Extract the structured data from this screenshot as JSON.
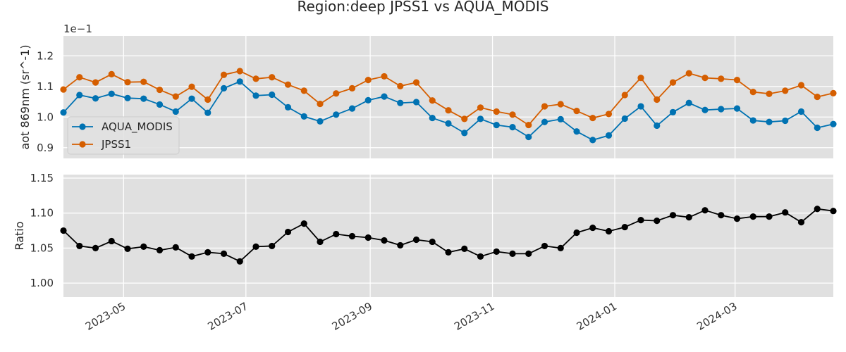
{
  "chart_data": {
    "type": "line",
    "title": "Region:deep JPSS1 vs AQUA_MODIS",
    "x": [
      "2023-04-01",
      "2023-04-09",
      "2023-04-17",
      "2023-04-25",
      "2023-05-03",
      "2023-05-11",
      "2023-05-19",
      "2023-05-27",
      "2023-06-04",
      "2023-06-12",
      "2023-06-20",
      "2023-06-28",
      "2023-07-06",
      "2023-07-14",
      "2023-07-22",
      "2023-07-30",
      "2023-08-07",
      "2023-08-15",
      "2023-08-23",
      "2023-08-31",
      "2023-09-08",
      "2023-09-16",
      "2023-09-24",
      "2023-10-02",
      "2023-10-10",
      "2023-10-18",
      "2023-10-26",
      "2023-11-03",
      "2023-11-11",
      "2023-11-19",
      "2023-11-27",
      "2023-12-05",
      "2023-12-13",
      "2023-12-21",
      "2023-12-29",
      "2024-01-06",
      "2024-01-14",
      "2024-01-22",
      "2024-01-30",
      "2024-02-07",
      "2024-02-15",
      "2024-02-23",
      "2024-03-02",
      "2024-03-10",
      "2024-03-18",
      "2024-03-26",
      "2024-04-03",
      "2024-04-11",
      "2024-04-19"
    ],
    "xticks": [
      "2023-05",
      "2023-07",
      "2023-09",
      "2023-11",
      "2024-01",
      "2024-03"
    ],
    "panels": [
      {
        "ylabel": "aot 869nm (sr^-1)",
        "offset_label": "1e−1",
        "yticks": [
          "0.9",
          "1.0",
          "1.1",
          "1.2"
        ],
        "ylim": [
          0.865,
          1.265
        ],
        "legend": "lower-left",
        "series": [
          {
            "name": "AQUA_MODIS",
            "color": "#0072b2",
            "values": [
              1.015,
              1.072,
              1.061,
              1.076,
              1.062,
              1.06,
              1.041,
              1.018,
              1.06,
              1.014,
              1.094,
              1.116,
              1.07,
              1.073,
              1.032,
              1.002,
              0.986,
              1.008,
              1.028,
              1.055,
              1.067,
              1.046,
              1.049,
              0.997,
              0.979,
              0.948,
              0.994,
              0.974,
              0.967,
              0.935,
              0.984,
              0.993,
              0.953,
              0.925,
              0.94,
              0.995,
              1.035,
              0.972,
              1.016,
              1.046,
              1.023,
              1.026,
              1.028,
              0.989,
              0.984,
              0.988,
              1.018,
              0.965,
              0.977
            ]
          },
          {
            "name": "JPSS1",
            "color": "#d55e00",
            "values": [
              1.09,
              1.13,
              1.113,
              1.14,
              1.114,
              1.115,
              1.089,
              1.067,
              1.099,
              1.057,
              1.138,
              1.15,
              1.125,
              1.13,
              1.106,
              1.086,
              1.043,
              1.077,
              1.094,
              1.121,
              1.133,
              1.101,
              1.113,
              1.054,
              1.022,
              0.994,
              1.031,
              1.018,
              1.008,
              0.974,
              1.035,
              1.042,
              1.02,
              0.997,
              1.01,
              1.072,
              1.128,
              1.057,
              1.113,
              1.143,
              1.128,
              1.125,
              1.121,
              1.082,
              1.076,
              1.086,
              1.104,
              1.066,
              1.078
            ]
          }
        ]
      },
      {
        "ylabel": "Ratio",
        "yticks": [
          "1.00",
          "1.05",
          "1.10",
          "1.15"
        ],
        "ylim": [
          0.98,
          1.155
        ],
        "series": [
          {
            "name": "",
            "color": "#000000",
            "values": [
              1.075,
              1.053,
              1.05,
              1.06,
              1.049,
              1.052,
              1.047,
              1.051,
              1.038,
              1.044,
              1.042,
              1.031,
              1.052,
              1.053,
              1.073,
              1.085,
              1.059,
              1.07,
              1.067,
              1.065,
              1.061,
              1.054,
              1.062,
              1.059,
              1.044,
              1.049,
              1.038,
              1.045,
              1.042,
              1.042,
              1.053,
              1.05,
              1.072,
              1.079,
              1.074,
              1.08,
              1.09,
              1.089,
              1.097,
              1.094,
              1.104,
              1.097,
              1.092,
              1.095,
              1.095,
              1.101,
              1.087,
              1.106,
              1.103
            ]
          }
        ]
      }
    ]
  }
}
